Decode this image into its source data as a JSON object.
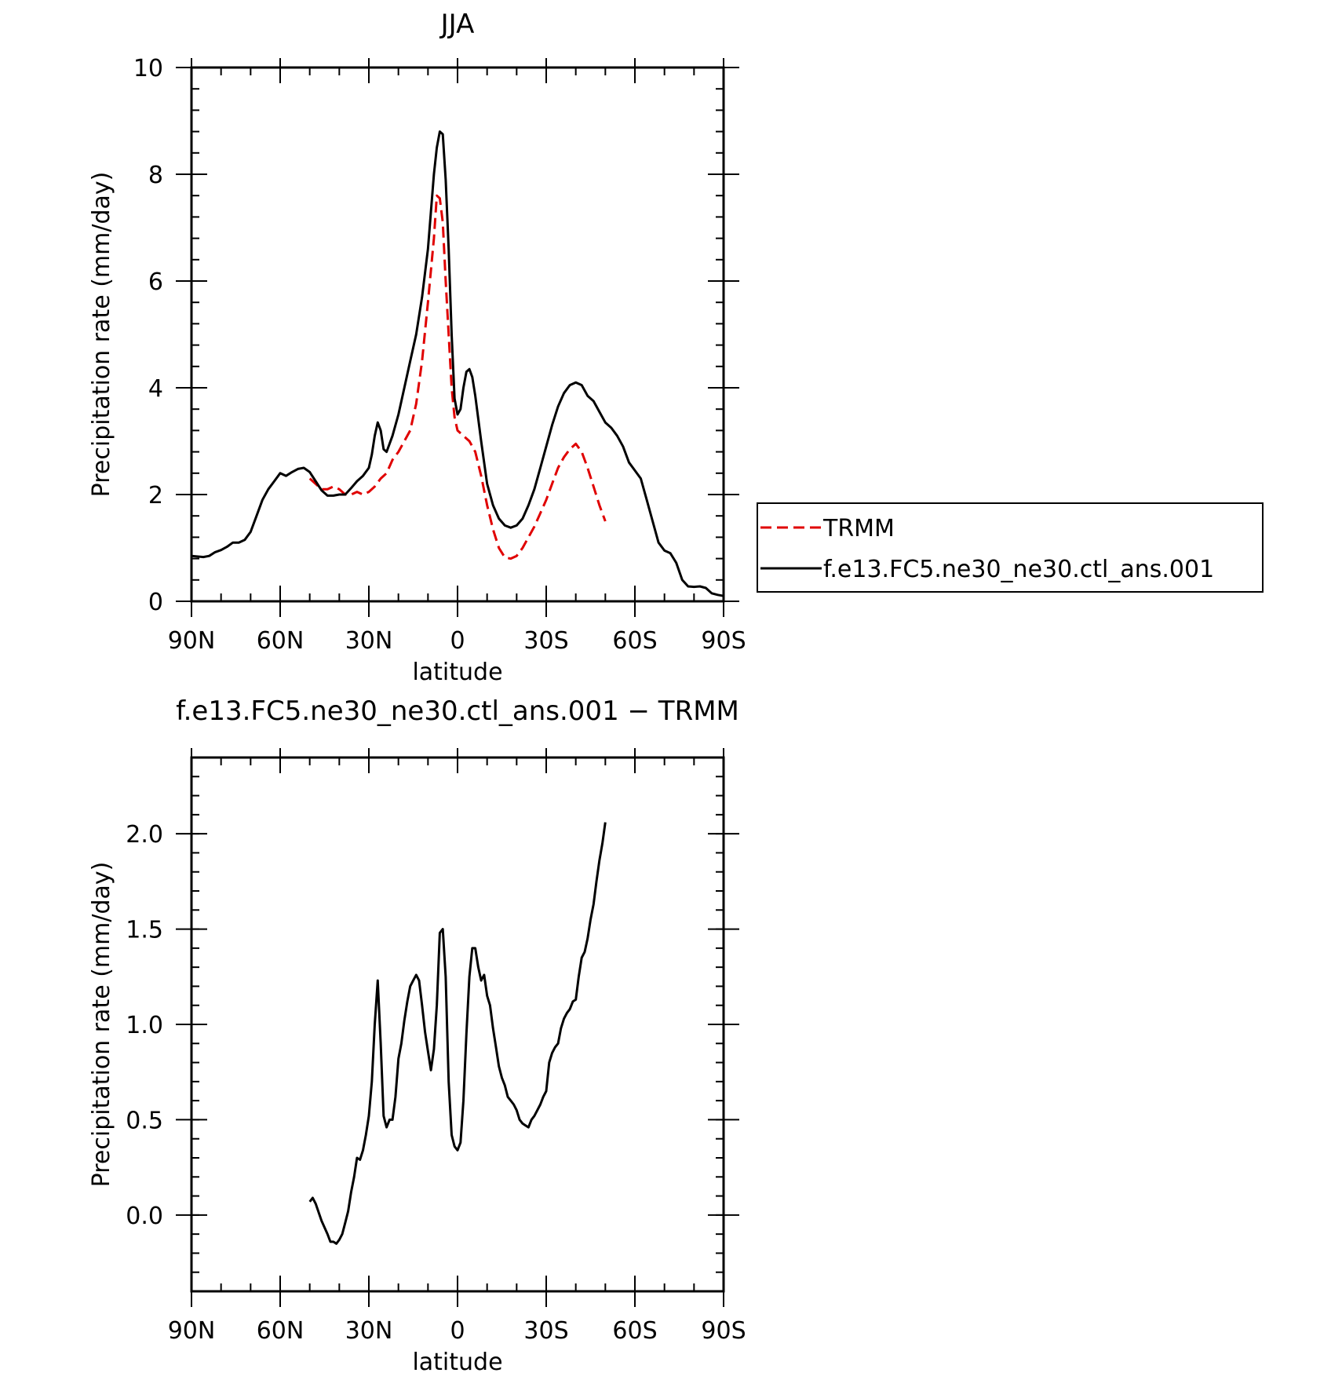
{
  "chart_data": [
    {
      "type": "line",
      "title": "JJA",
      "xlabel": "latitude",
      "ylabel": "Precipitation rate (mm/day)",
      "xlim": [
        90,
        -90
      ],
      "ylim": [
        0,
        10
      ],
      "x_ticks": [
        {
          "value": 90,
          "label": "90N"
        },
        {
          "value": 60,
          "label": "60N"
        },
        {
          "value": 30,
          "label": "30N"
        },
        {
          "value": 0,
          "label": "0"
        },
        {
          "value": -30,
          "label": "30S"
        },
        {
          "value": -60,
          "label": "60S"
        },
        {
          "value": -90,
          "label": "90S"
        }
      ],
      "y_ticks": [
        {
          "value": 0,
          "label": "0"
        },
        {
          "value": 2,
          "label": "2"
        },
        {
          "value": 4,
          "label": "4"
        },
        {
          "value": 6,
          "label": "6"
        },
        {
          "value": 8,
          "label": "8"
        },
        {
          "value": 10,
          "label": "10"
        }
      ],
      "legend_position": "right",
      "series": [
        {
          "name": "TRMM",
          "color": "#e00000",
          "style": "dashed",
          "points": [
            [
              50,
              2.3
            ],
            [
              48,
              2.2
            ],
            [
              46,
              2.1
            ],
            [
              44,
              2.1
            ],
            [
              42,
              2.15
            ],
            [
              40,
              2.1
            ],
            [
              38,
              2.0
            ],
            [
              36,
              2.0
            ],
            [
              34,
              2.05
            ],
            [
              32,
              2.0
            ],
            [
              30,
              2.05
            ],
            [
              28,
              2.15
            ],
            [
              26,
              2.3
            ],
            [
              24,
              2.4
            ],
            [
              22,
              2.65
            ],
            [
              20,
              2.8
            ],
            [
              18,
              3.0
            ],
            [
              16,
              3.2
            ],
            [
              14,
              3.7
            ],
            [
              12,
              4.5
            ],
            [
              10,
              5.6
            ],
            [
              8,
              6.8
            ],
            [
              7,
              7.6
            ],
            [
              6,
              7.55
            ],
            [
              5,
              7.1
            ],
            [
              4,
              6.0
            ],
            [
              3,
              5.0
            ],
            [
              2,
              4.0
            ],
            [
              1,
              3.45
            ],
            [
              0,
              3.2
            ],
            [
              -2,
              3.1
            ],
            [
              -4,
              3.0
            ],
            [
              -6,
              2.8
            ],
            [
              -8,
              2.35
            ],
            [
              -10,
              1.8
            ],
            [
              -12,
              1.35
            ],
            [
              -14,
              1.0
            ],
            [
              -16,
              0.82
            ],
            [
              -18,
              0.8
            ],
            [
              -20,
              0.85
            ],
            [
              -22,
              1.0
            ],
            [
              -24,
              1.2
            ],
            [
              -26,
              1.4
            ],
            [
              -28,
              1.65
            ],
            [
              -30,
              1.9
            ],
            [
              -32,
              2.2
            ],
            [
              -34,
              2.5
            ],
            [
              -36,
              2.7
            ],
            [
              -38,
              2.85
            ],
            [
              -40,
              2.95
            ],
            [
              -42,
              2.8
            ],
            [
              -44,
              2.5
            ],
            [
              -46,
              2.15
            ],
            [
              -48,
              1.8
            ],
            [
              -50,
              1.5
            ]
          ]
        },
        {
          "name": "f.e13.FC5.ne30_ne30.ctl_ans.001",
          "color": "#000000",
          "style": "solid",
          "points": [
            [
              90,
              0.85
            ],
            [
              86,
              0.83
            ],
            [
              84,
              0.85
            ],
            [
              82,
              0.92
            ],
            [
              80,
              0.96
            ],
            [
              78,
              1.02
            ],
            [
              76,
              1.1
            ],
            [
              74,
              1.1
            ],
            [
              72,
              1.15
            ],
            [
              70,
              1.3
            ],
            [
              68,
              1.6
            ],
            [
              66,
              1.9
            ],
            [
              64,
              2.1
            ],
            [
              62,
              2.25
            ],
            [
              60,
              2.4
            ],
            [
              58,
              2.35
            ],
            [
              56,
              2.42
            ],
            [
              54,
              2.48
            ],
            [
              52,
              2.5
            ],
            [
              50,
              2.42
            ],
            [
              48,
              2.25
            ],
            [
              46,
              2.08
            ],
            [
              44,
              1.98
            ],
            [
              42,
              1.98
            ],
            [
              40,
              2.0
            ],
            [
              38,
              2.0
            ],
            [
              36,
              2.12
            ],
            [
              34,
              2.25
            ],
            [
              32,
              2.35
            ],
            [
              30,
              2.5
            ],
            [
              29,
              2.75
            ],
            [
              28,
              3.1
            ],
            [
              27,
              3.35
            ],
            [
              26,
              3.2
            ],
            [
              25,
              2.85
            ],
            [
              24,
              2.8
            ],
            [
              22,
              3.1
            ],
            [
              20,
              3.5
            ],
            [
              18,
              4.0
            ],
            [
              16,
              4.5
            ],
            [
              14,
              5.0
            ],
            [
              12,
              5.7
            ],
            [
              10,
              6.6
            ],
            [
              9,
              7.3
            ],
            [
              8,
              8.0
            ],
            [
              7,
              8.5
            ],
            [
              6,
              8.8
            ],
            [
              5,
              8.75
            ],
            [
              4,
              7.9
            ],
            [
              3,
              6.6
            ],
            [
              2,
              5.0
            ],
            [
              1,
              3.8
            ],
            [
              0,
              3.5
            ],
            [
              -1,
              3.6
            ],
            [
              -2,
              4.0
            ],
            [
              -3,
              4.3
            ],
            [
              -4,
              4.35
            ],
            [
              -5,
              4.2
            ],
            [
              -6,
              3.85
            ],
            [
              -8,
              3.0
            ],
            [
              -10,
              2.2
            ],
            [
              -12,
              1.8
            ],
            [
              -14,
              1.55
            ],
            [
              -16,
              1.42
            ],
            [
              -18,
              1.38
            ],
            [
              -20,
              1.42
            ],
            [
              -22,
              1.55
            ],
            [
              -24,
              1.8
            ],
            [
              -26,
              2.1
            ],
            [
              -28,
              2.5
            ],
            [
              -30,
              2.9
            ],
            [
              -32,
              3.3
            ],
            [
              -34,
              3.65
            ],
            [
              -36,
              3.9
            ],
            [
              -38,
              4.05
            ],
            [
              -40,
              4.1
            ],
            [
              -42,
              4.05
            ],
            [
              -44,
              3.85
            ],
            [
              -46,
              3.75
            ],
            [
              -48,
              3.55
            ],
            [
              -50,
              3.35
            ],
            [
              -52,
              3.25
            ],
            [
              -54,
              3.1
            ],
            [
              -56,
              2.9
            ],
            [
              -58,
              2.6
            ],
            [
              -60,
              2.45
            ],
            [
              -62,
              2.3
            ],
            [
              -64,
              1.9
            ],
            [
              -66,
              1.5
            ],
            [
              -68,
              1.1
            ],
            [
              -70,
              0.95
            ],
            [
              -72,
              0.9
            ],
            [
              -74,
              0.72
            ],
            [
              -76,
              0.4
            ],
            [
              -78,
              0.28
            ],
            [
              -80,
              0.27
            ],
            [
              -82,
              0.28
            ],
            [
              -84,
              0.25
            ],
            [
              -86,
              0.15
            ],
            [
              -88,
              0.12
            ],
            [
              -90,
              0.1
            ]
          ]
        }
      ]
    },
    {
      "type": "line",
      "title": "f.e13.FC5.ne30_ne30.ctl_ans.001 − TRMM",
      "xlabel": "latitude",
      "ylabel": "Precipitation rate (mm/day)",
      "xlim": [
        90,
        -90
      ],
      "ylim": [
        -0.4,
        2.4
      ],
      "x_ticks": [
        {
          "value": 90,
          "label": "90N"
        },
        {
          "value": 60,
          "label": "60N"
        },
        {
          "value": 30,
          "label": "30N"
        },
        {
          "value": 0,
          "label": "0"
        },
        {
          "value": -30,
          "label": "30S"
        },
        {
          "value": -60,
          "label": "60S"
        },
        {
          "value": -90,
          "label": "90S"
        }
      ],
      "y_ticks": [
        {
          "value": 0.0,
          "label": "0.0"
        },
        {
          "value": 0.5,
          "label": "0.5"
        },
        {
          "value": 1.0,
          "label": "1.0"
        },
        {
          "value": 1.5,
          "label": "1.5"
        },
        {
          "value": 2.0,
          "label": "2.0"
        }
      ],
      "series": [
        {
          "name": "",
          "color": "#000000",
          "style": "solid",
          "points": [
            [
              50,
              0.07
            ],
            [
              49,
              0.09
            ],
            [
              48,
              0.06
            ],
            [
              46,
              -0.03
            ],
            [
              44,
              -0.1
            ],
            [
              43,
              -0.14
            ],
            [
              42,
              -0.14
            ],
            [
              41,
              -0.15
            ],
            [
              40,
              -0.13
            ],
            [
              39,
              -0.1
            ],
            [
              38,
              -0.04
            ],
            [
              37,
              0.02
            ],
            [
              36,
              0.12
            ],
            [
              35,
              0.2
            ],
            [
              34,
              0.3
            ],
            [
              33,
              0.29
            ],
            [
              32,
              0.34
            ],
            [
              31,
              0.42
            ],
            [
              30,
              0.52
            ],
            [
              29,
              0.7
            ],
            [
              28,
              1.0
            ],
            [
              27,
              1.23
            ],
            [
              26,
              0.9
            ],
            [
              25,
              0.52
            ],
            [
              24,
              0.46
            ],
            [
              23,
              0.5
            ],
            [
              22,
              0.5
            ],
            [
              21,
              0.62
            ],
            [
              20,
              0.82
            ],
            [
              19,
              0.9
            ],
            [
              18,
              1.02
            ],
            [
              17,
              1.12
            ],
            [
              16,
              1.2
            ],
            [
              15,
              1.23
            ],
            [
              14,
              1.26
            ],
            [
              13,
              1.23
            ],
            [
              12,
              1.1
            ],
            [
              11,
              0.96
            ],
            [
              10,
              0.86
            ],
            [
              9,
              0.76
            ],
            [
              8,
              0.87
            ],
            [
              7,
              1.1
            ],
            [
              6,
              1.48
            ],
            [
              5,
              1.5
            ],
            [
              4,
              1.25
            ],
            [
              3,
              0.7
            ],
            [
              2,
              0.42
            ],
            [
              1,
              0.36
            ],
            [
              0,
              0.34
            ],
            [
              -1,
              0.38
            ],
            [
              -2,
              0.6
            ],
            [
              -3,
              0.95
            ],
            [
              -4,
              1.25
            ],
            [
              -5,
              1.4
            ],
            [
              -6,
              1.4
            ],
            [
              -7,
              1.3
            ],
            [
              -8,
              1.23
            ],
            [
              -9,
              1.26
            ],
            [
              -10,
              1.15
            ],
            [
              -11,
              1.1
            ],
            [
              -12,
              0.98
            ],
            [
              -13,
              0.88
            ],
            [
              -14,
              0.78
            ],
            [
              -15,
              0.72
            ],
            [
              -16,
              0.68
            ],
            [
              -17,
              0.62
            ],
            [
              -18,
              0.6
            ],
            [
              -19,
              0.58
            ],
            [
              -20,
              0.55
            ],
            [
              -21,
              0.5
            ],
            [
              -22,
              0.48
            ],
            [
              -23,
              0.47
            ],
            [
              -24,
              0.46
            ],
            [
              -25,
              0.5
            ],
            [
              -26,
              0.52
            ],
            [
              -27,
              0.55
            ],
            [
              -28,
              0.58
            ],
            [
              -29,
              0.62
            ],
            [
              -30,
              0.65
            ],
            [
              -31,
              0.8
            ],
            [
              -32,
              0.85
            ],
            [
              -33,
              0.88
            ],
            [
              -34,
              0.9
            ],
            [
              -35,
              0.98
            ],
            [
              -36,
              1.03
            ],
            [
              -37,
              1.06
            ],
            [
              -38,
              1.08
            ],
            [
              -39,
              1.12
            ],
            [
              -40,
              1.13
            ],
            [
              -41,
              1.25
            ],
            [
              -42,
              1.35
            ],
            [
              -43,
              1.38
            ],
            [
              -44,
              1.45
            ],
            [
              -45,
              1.55
            ],
            [
              -46,
              1.63
            ],
            [
              -47,
              1.75
            ],
            [
              -48,
              1.86
            ],
            [
              -49,
              1.95
            ],
            [
              -50,
              2.06
            ]
          ]
        }
      ]
    }
  ]
}
